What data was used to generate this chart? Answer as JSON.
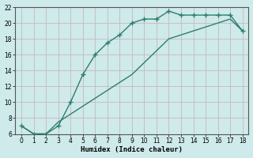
{
  "line1_x": [
    0,
    1,
    2,
    3,
    4,
    5,
    6,
    7,
    8,
    9,
    10,
    11,
    12,
    13,
    14,
    15,
    16,
    17,
    18
  ],
  "line1_y": [
    7.0,
    6.0,
    6.0,
    7.0,
    10.0,
    13.5,
    16.0,
    17.5,
    18.5,
    20.0,
    20.5,
    20.5,
    21.5,
    21.0,
    21.0,
    21.0,
    21.0,
    21.0,
    19.0
  ],
  "line2_x": [
    0,
    1,
    2,
    3,
    4,
    5,
    6,
    7,
    8,
    9,
    10,
    11,
    12,
    13,
    14,
    15,
    16,
    17,
    18
  ],
  "line2_y": [
    7.0,
    6.0,
    6.0,
    7.5,
    8.5,
    9.5,
    10.5,
    11.5,
    12.5,
    13.5,
    15.0,
    16.5,
    18.0,
    18.5,
    19.0,
    19.5,
    20.0,
    20.5,
    19.0
  ],
  "line_color": "#2d7d6e",
  "bg_color": "#ceeaea",
  "grid_color": "#c0d8d8",
  "xlabel": "Humidex (Indice chaleur)",
  "ylim": [
    6,
    22
  ],
  "xlim": [
    -0.5,
    18.5
  ],
  "yticks": [
    6,
    8,
    10,
    12,
    14,
    16,
    18,
    20,
    22
  ],
  "xticks": [
    0,
    1,
    2,
    3,
    4,
    5,
    6,
    7,
    8,
    9,
    10,
    11,
    12,
    13,
    14,
    15,
    16,
    17,
    18
  ]
}
